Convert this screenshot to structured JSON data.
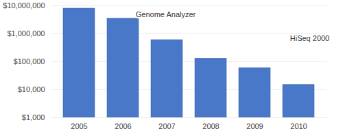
{
  "chart_data": {
    "type": "bar",
    "categories": [
      "2005",
      "2006",
      "2007",
      "2008",
      "2009",
      "2010"
    ],
    "values": [
      8000000,
      3500000,
      600000,
      130000,
      60000,
      15000
    ],
    "color": "#4a78c8",
    "log": "y",
    "ylim": [
      1000,
      10000000
    ],
    "yticks": [
      {
        "value": 1000,
        "label": "$1,000"
      },
      {
        "value": 10000,
        "label": "$10,000"
      },
      {
        "value": 100000,
        "label": "$100,000"
      },
      {
        "value": 1000000,
        "label": "$1,000,000"
      },
      {
        "value": 10000000,
        "label": "$10,000,000"
      }
    ],
    "grid": true,
    "annotations": [
      {
        "x": "2006",
        "text": "Genome Analyzer"
      },
      {
        "x": "2010",
        "text": "HiSeq 2000"
      }
    ]
  }
}
